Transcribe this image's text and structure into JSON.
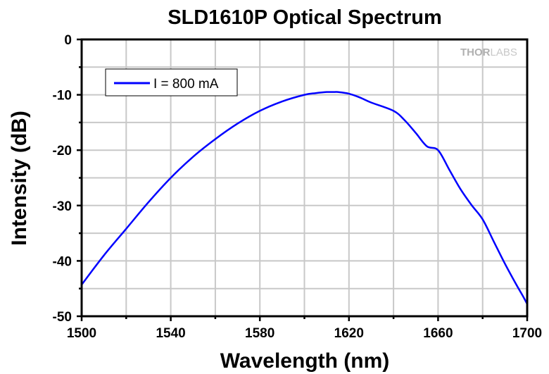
{
  "chart_data": {
    "type": "line",
    "title": "SLD1610P Optical Spectrum",
    "xlabel": "Wavelength (nm)",
    "ylabel": "Intensity (dB)",
    "xlim": [
      1500,
      1700
    ],
    "ylim": [
      -50,
      0
    ],
    "xticks": [
      1500,
      1540,
      1580,
      1620,
      1660,
      1700
    ],
    "xminor": [
      1520,
      1560,
      1600,
      1640,
      1680
    ],
    "yticks": [
      0,
      -10,
      -20,
      -30,
      -40,
      -50
    ],
    "yminor": [
      -5,
      -15,
      -25,
      -35,
      -45
    ],
    "grid": true,
    "legend_position": "top-left",
    "watermark": {
      "brand_bold": "THOR",
      "brand_light": "LABS"
    },
    "series": [
      {
        "name": "I = 800 mA",
        "color": "#0000ff",
        "x": [
          1500,
          1510,
          1520,
          1530,
          1540,
          1550,
          1560,
          1570,
          1580,
          1590,
          1600,
          1605,
          1610,
          1613,
          1615,
          1620,
          1625,
          1630,
          1640,
          1645,
          1650,
          1655,
          1660,
          1665,
          1670,
          1675,
          1680,
          1685,
          1690,
          1695,
          1698,
          1700
        ],
        "y": [
          -44.3,
          -39.0,
          -34.2,
          -29.4,
          -25.0,
          -21.2,
          -18.0,
          -15.2,
          -12.9,
          -11.2,
          -10.0,
          -9.7,
          -9.5,
          -9.5,
          -9.5,
          -9.8,
          -10.5,
          -11.4,
          -12.9,
          -14.6,
          -16.9,
          -19.3,
          -20.0,
          -23.5,
          -27.0,
          -29.9,
          -32.5,
          -36.5,
          -40.5,
          -44.2,
          -46.3,
          -47.8
        ]
      }
    ]
  }
}
